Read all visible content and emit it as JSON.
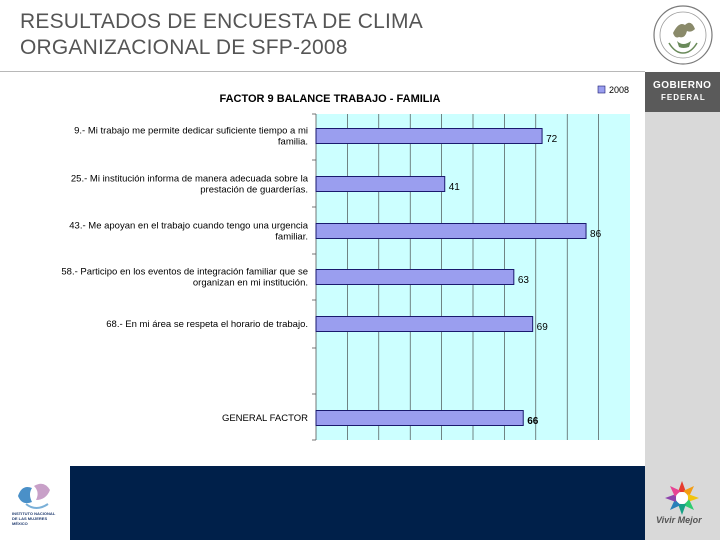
{
  "slide": {
    "title_line1": "RESULTADOS DE ENCUESTA DE CLIMA",
    "title_line2": "ORGANIZACIONAL DE SFP-2008"
  },
  "branding": {
    "gov_line1": "GOBIERNO",
    "gov_line2": "FEDERAL",
    "vivir_mejor": "Vivir Mejor",
    "institute_lines": [
      "INSTITUTO NACIONAL",
      "DE LAS MUJERES",
      "MÉXICO"
    ]
  },
  "colors": {
    "bar_fill": "#9a9eef",
    "bar_stroke": "#1a1a6e",
    "plot_bg": "#ccffff",
    "footer": "#00204a"
  },
  "chart_data": {
    "type": "bar",
    "orientation": "horizontal",
    "title": "FACTOR 9 BALANCE TRABAJO - FAMILIA",
    "legend": [
      "2008"
    ],
    "legend_position": "top-right",
    "grid": true,
    "xlim": [
      0,
      100
    ],
    "categories": [
      [
        "9.- Mi trabajo me permite dedicar suficiente tiempo a mi",
        "familia."
      ],
      [
        "25.- Mi institución informa de manera adecuada sobre la",
        "prestación de guarderías."
      ],
      [
        "43.- Me apoyan en el trabajo cuando tengo una urgencia",
        "familiar."
      ],
      [
        "58.- Participo en los eventos de integración familiar que se",
        "organizan en mi institución."
      ],
      [
        "68.- En mi área se respeta el horario de trabajo."
      ],
      [
        "GENERAL FACTOR"
      ]
    ],
    "series": [
      {
        "name": "2008",
        "values": [
          72,
          41,
          86,
          63,
          69,
          66
        ]
      }
    ],
    "value_labels": [
      "72",
      "41",
      "86",
      "63",
      "69",
      "66"
    ]
  }
}
